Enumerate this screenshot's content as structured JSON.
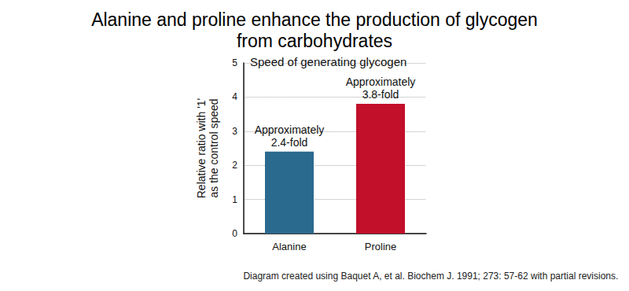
{
  "chart_data": {
    "type": "bar",
    "title": "Alanine and proline enhance the production of glycogen\nfrom carbohydrates",
    "subtitle": "Speed of generating glycogen",
    "ylabel": "Relative ratio with '1'\nas the control speed",
    "categories": [
      "Alanine",
      "Proline"
    ],
    "values": [
      2.4,
      3.8
    ],
    "value_labels": [
      "Approximately\n2.4-fold",
      "Approximately\n3.8-fold"
    ],
    "data_labels": true,
    "colors": [
      "#2a6a8e",
      "#c20f2a"
    ],
    "ylim": [
      0,
      5
    ],
    "yticks": [
      0,
      1,
      2,
      3,
      4,
      5
    ],
    "grid": true,
    "annotations": [
      "Diagram created using Baquet A, et al. Biochem J. 1991; 273: 57-62 with partial revisions."
    ]
  }
}
